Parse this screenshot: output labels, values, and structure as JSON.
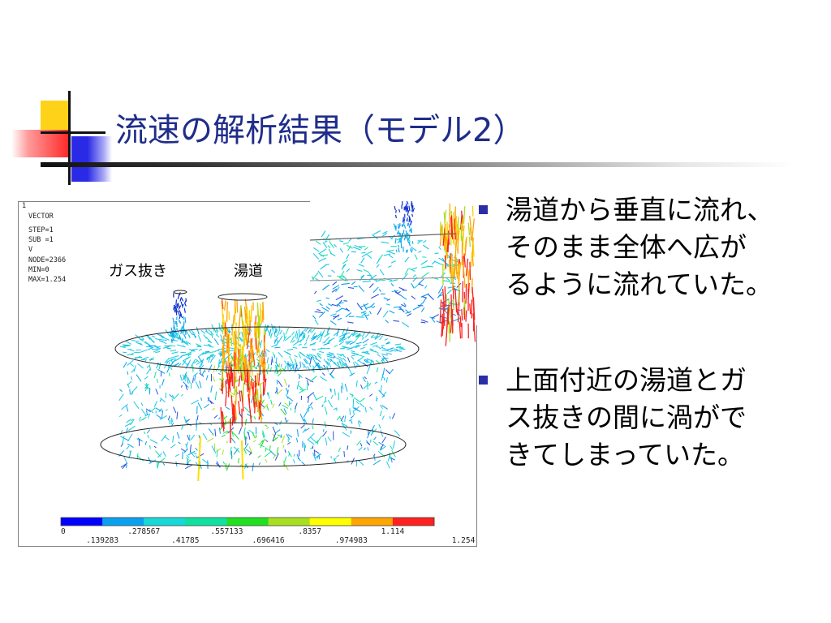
{
  "slide": {
    "title": "流速の解析結果（モデル2）"
  },
  "figure": {
    "header_lines": [
      "1",
      "VECTOR",
      "STEP=1",
      "SUB =1",
      "V",
      "NODE=2366",
      "MIN=0",
      "MAX=1.254"
    ],
    "label_gas_vent": "ガス抜き",
    "label_sprue": "湯道",
    "colorbar": {
      "colors": [
        "#0000ff",
        "#0aa0f0",
        "#18d8d8",
        "#10e0a0",
        "#20e020",
        "#a8e020",
        "#ffff00",
        "#ffa500",
        "#ff2020"
      ],
      "labels_top": [
        "0",
        ".278567",
        ".557133",
        ".8357",
        "1.114"
      ],
      "labels_bottom": [
        ".139283",
        ".41785",
        ".696416",
        ".974983",
        "1.254"
      ]
    }
  },
  "bullets": [
    {
      "lines": [
        "湯道から垂直に流れ、",
        "そのまま全体へ広が",
        "るように流れていた。"
      ]
    },
    {
      "lines": [
        "上面付近の湯道とガ",
        "ス抜きの間に渦がで",
        "きてしまっていた。"
      ]
    }
  ]
}
